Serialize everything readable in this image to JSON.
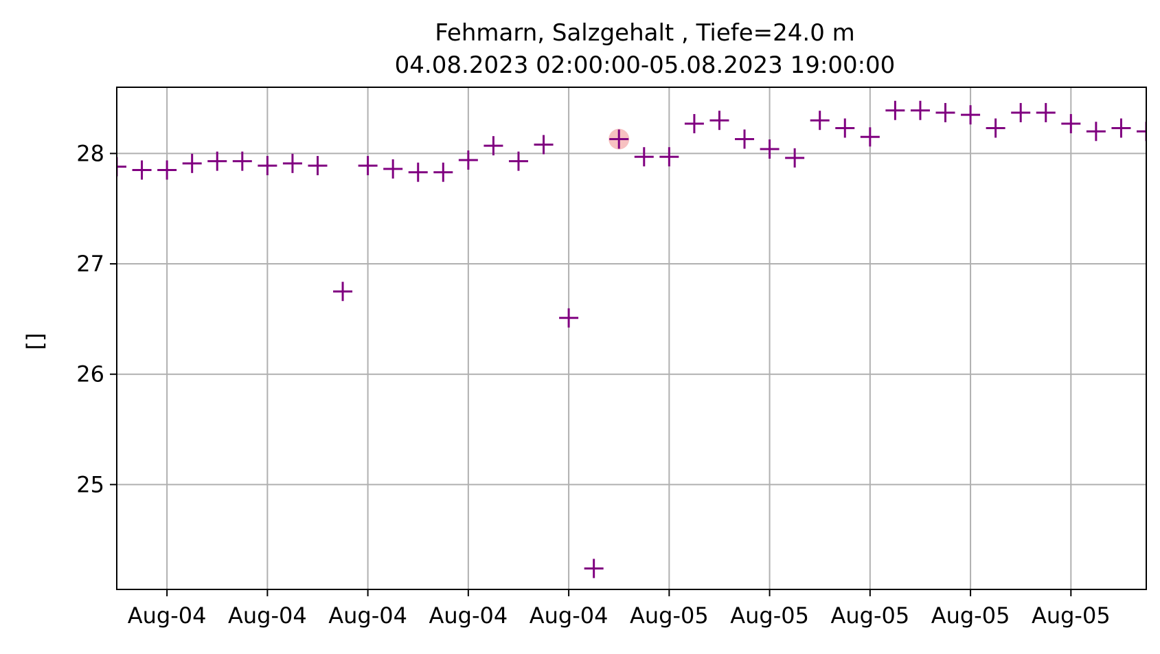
{
  "chart_data": {
    "type": "scatter",
    "title": "Fehmarn, Salzgehalt , Tiefe=24.0 m",
    "subtitle": "04.08.2023 02:00:00-05.08.2023 19:00:00",
    "xlabel": "",
    "ylabel": "[]",
    "xlim": [
      "2023-08-04 02:00",
      "2023-08-05 19:00"
    ],
    "ylim": [
      24.05,
      28.6
    ],
    "yticks": [
      25,
      26,
      27,
      28
    ],
    "xticks": [
      {
        "t": "2023-08-04 04:00",
        "label": "Aug-04"
      },
      {
        "t": "2023-08-04 08:00",
        "label": "Aug-04"
      },
      {
        "t": "2023-08-04 12:00",
        "label": "Aug-04"
      },
      {
        "t": "2023-08-04 16:00",
        "label": "Aug-04"
      },
      {
        "t": "2023-08-04 20:00",
        "label": "Aug-04"
      },
      {
        "t": "2023-08-05 00:00",
        "label": "Aug-05"
      },
      {
        "t": "2023-08-05 04:00",
        "label": "Aug-05"
      },
      {
        "t": "2023-08-05 08:00",
        "label": "Aug-05"
      },
      {
        "t": "2023-08-05 12:00",
        "label": "Aug-05"
      },
      {
        "t": "2023-08-05 16:00",
        "label": "Aug-05"
      }
    ],
    "grid": true,
    "marker": "+",
    "marker_color": "#800080",
    "highlight_color": "#f4a6a6",
    "series": [
      {
        "points": [
          {
            "t": "2023-08-04 02:00",
            "y": 27.88
          },
          {
            "t": "2023-08-04 03:00",
            "y": 27.85
          },
          {
            "t": "2023-08-04 04:00",
            "y": 27.85
          },
          {
            "t": "2023-08-04 05:00",
            "y": 27.91
          },
          {
            "t": "2023-08-04 06:00",
            "y": 27.93
          },
          {
            "t": "2023-08-04 07:00",
            "y": 27.93
          },
          {
            "t": "2023-08-04 08:00",
            "y": 27.89
          },
          {
            "t": "2023-08-04 09:00",
            "y": 27.91
          },
          {
            "t": "2023-08-04 10:00",
            "y": 27.89
          },
          {
            "t": "2023-08-04 11:00",
            "y": 26.75
          },
          {
            "t": "2023-08-04 12:00",
            "y": 27.89
          },
          {
            "t": "2023-08-04 13:00",
            "y": 27.86
          },
          {
            "t": "2023-08-04 14:00",
            "y": 27.83
          },
          {
            "t": "2023-08-04 15:00",
            "y": 27.83
          },
          {
            "t": "2023-08-04 16:00",
            "y": 27.94
          },
          {
            "t": "2023-08-04 17:00",
            "y": 28.07
          },
          {
            "t": "2023-08-04 18:00",
            "y": 27.93
          },
          {
            "t": "2023-08-04 19:00",
            "y": 28.08
          },
          {
            "t": "2023-08-04 20:00",
            "y": 26.51
          },
          {
            "t": "2023-08-04 21:00",
            "y": 24.24
          },
          {
            "t": "2023-08-04 22:00",
            "y": 28.13,
            "highlight": true
          },
          {
            "t": "2023-08-04 23:00",
            "y": 27.97
          },
          {
            "t": "2023-08-05 00:00",
            "y": 27.97
          },
          {
            "t": "2023-08-05 01:00",
            "y": 28.27
          },
          {
            "t": "2023-08-05 02:00",
            "y": 28.3
          },
          {
            "t": "2023-08-05 03:00",
            "y": 28.13
          },
          {
            "t": "2023-08-05 04:00",
            "y": 28.04
          },
          {
            "t": "2023-08-05 05:00",
            "y": 27.96
          },
          {
            "t": "2023-08-05 06:00",
            "y": 28.3
          },
          {
            "t": "2023-08-05 07:00",
            "y": 28.23
          },
          {
            "t": "2023-08-05 08:00",
            "y": 28.15
          },
          {
            "t": "2023-08-05 09:00",
            "y": 28.39
          },
          {
            "t": "2023-08-05 10:00",
            "y": 28.39
          },
          {
            "t": "2023-08-05 11:00",
            "y": 28.37
          },
          {
            "t": "2023-08-05 12:00",
            "y": 28.35
          },
          {
            "t": "2023-08-05 13:00",
            "y": 28.23
          },
          {
            "t": "2023-08-05 14:00",
            "y": 28.37
          },
          {
            "t": "2023-08-05 15:00",
            "y": 28.37
          },
          {
            "t": "2023-08-05 16:00",
            "y": 28.27
          },
          {
            "t": "2023-08-05 17:00",
            "y": 28.2
          },
          {
            "t": "2023-08-05 18:00",
            "y": 28.23
          },
          {
            "t": "2023-08-05 19:00",
            "y": 28.2
          }
        ]
      }
    ]
  }
}
